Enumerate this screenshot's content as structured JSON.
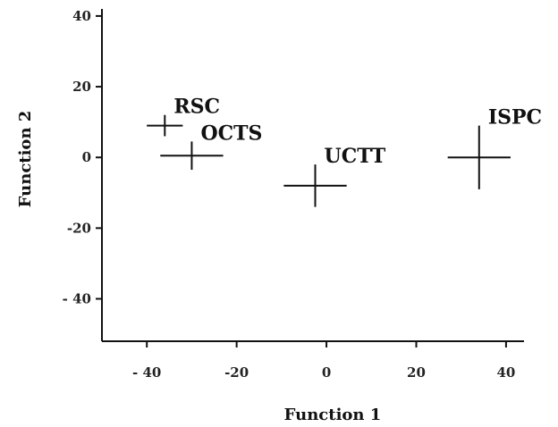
{
  "chart_data": {
    "type": "scatter",
    "xlabel": "Function 1",
    "ylabel": "Function 2",
    "xlim": [
      -50,
      44
    ],
    "ylim": [
      -52,
      42
    ],
    "xticks": [
      {
        "value": -40,
        "label": "- 40"
      },
      {
        "value": -20,
        "label": "-20"
      },
      {
        "value": 0,
        "label": "0"
      },
      {
        "value": 20,
        "label": "20"
      },
      {
        "value": 40,
        "label": "40"
      }
    ],
    "yticks": [
      {
        "value": 40,
        "label": "40"
      },
      {
        "value": 20,
        "label": "20"
      },
      {
        "value": 0,
        "label": "0"
      },
      {
        "value": -20,
        "label": "-20"
      },
      {
        "value": -40,
        "label": "- 40"
      }
    ],
    "points": [
      {
        "label": "RSC",
        "x": -36,
        "y": 9,
        "x_half_width": 4,
        "y_half_height": 3
      },
      {
        "label": "OCTS",
        "x": -30,
        "y": 0.5,
        "x_half_width": 7,
        "y_half_height": 4
      },
      {
        "label": "UCTT",
        "x": -2.5,
        "y": -8,
        "x_half_width": 7,
        "y_half_height": 6
      },
      {
        "label": "ISPC",
        "x": 34,
        "y": 0,
        "x_half_width": 7,
        "y_half_height": 9
      }
    ],
    "grid": false,
    "legend": "none"
  }
}
